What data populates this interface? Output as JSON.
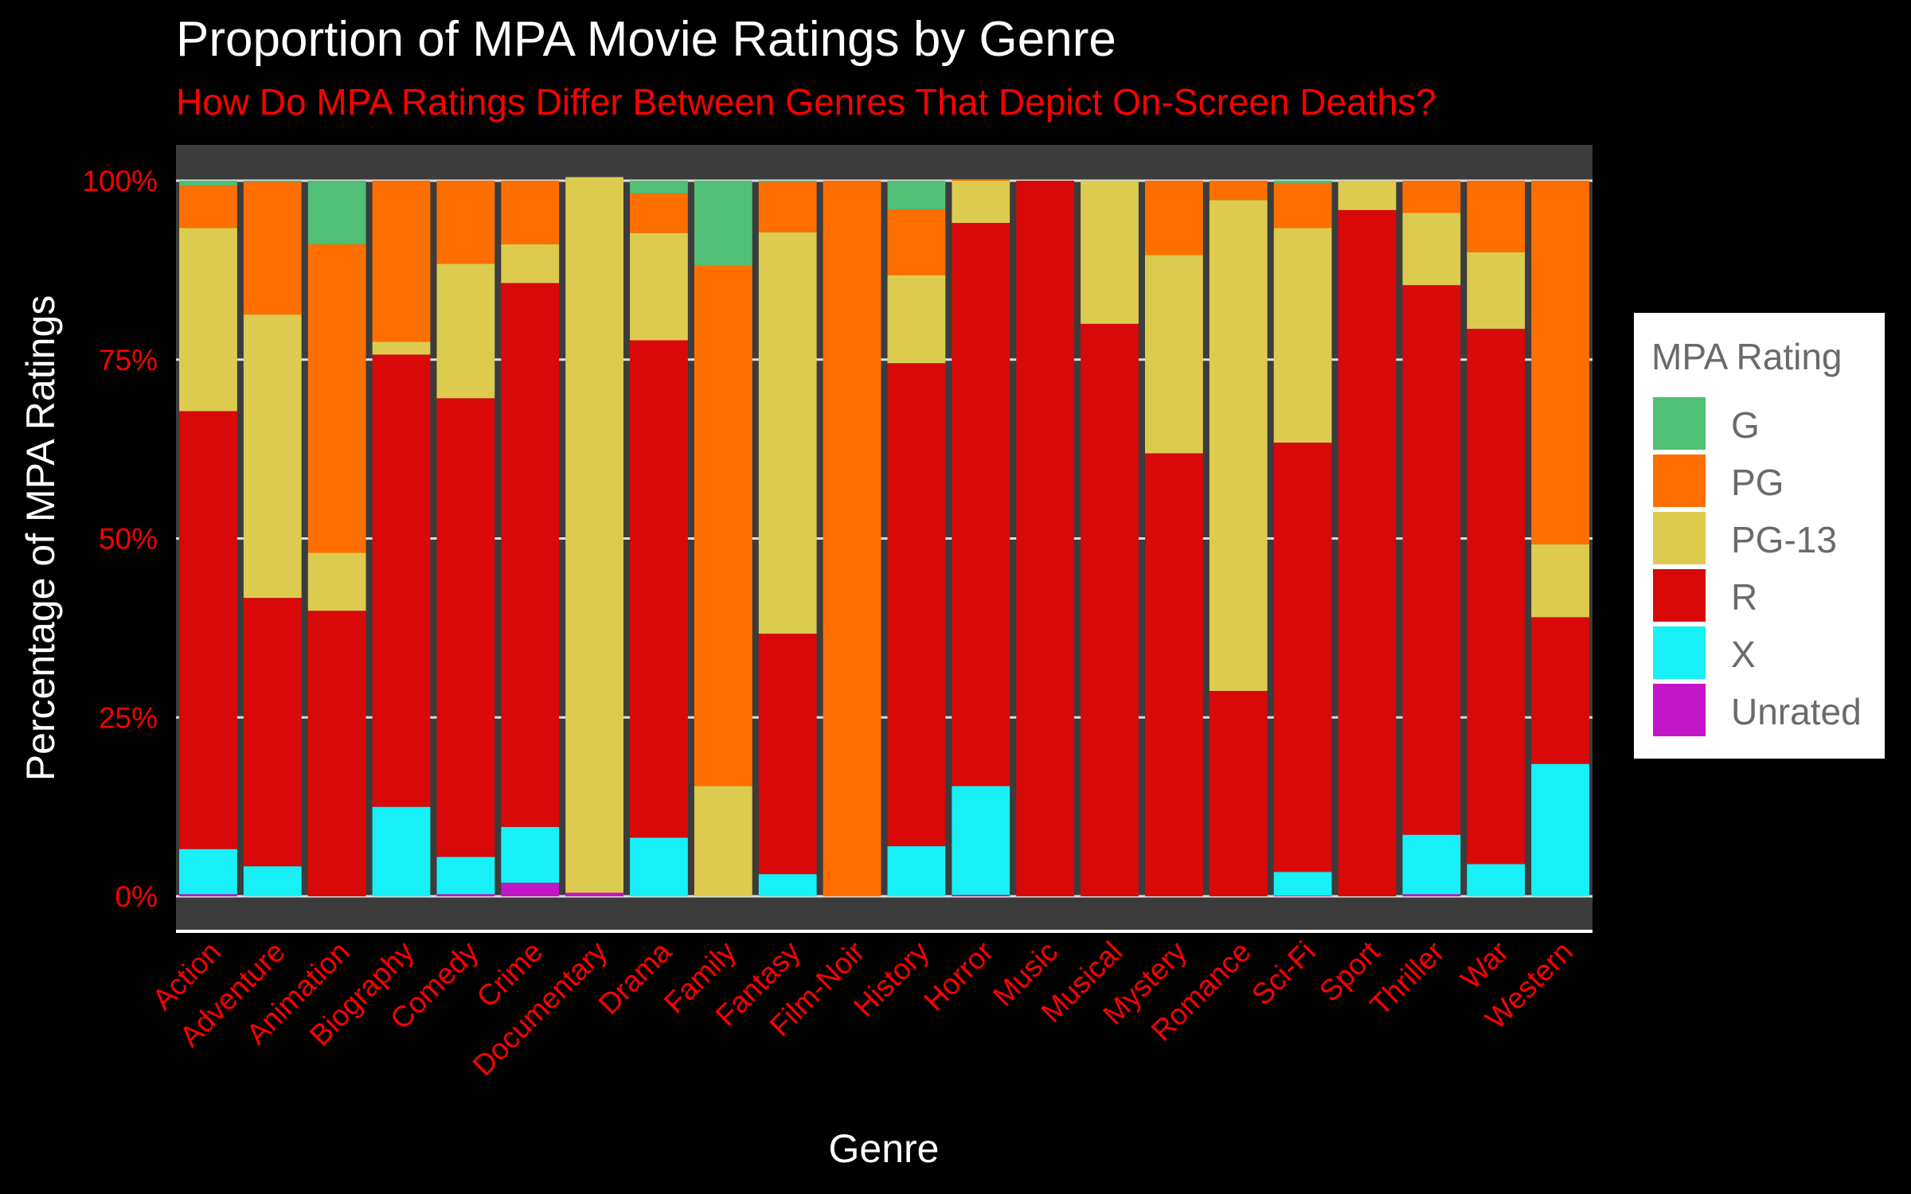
{
  "chart_data": {
    "type": "bar",
    "stacked": true,
    "normalized": true,
    "title": "Proportion of MPA Movie Ratings by Genre",
    "subtitle": "How Do MPA Ratings Differ Between Genres That Depict On-Screen Deaths?",
    "xlabel": "Genre",
    "ylabel": "Percentage of MPA Ratings",
    "ylim": [
      0,
      100
    ],
    "y_ticks": [
      "0%",
      "25%",
      "50%",
      "75%",
      "100%"
    ],
    "y_tick_values": [
      0,
      25,
      50,
      75,
      100
    ],
    "grid": true,
    "legend_title": "MPA Rating",
    "legend_position": "right",
    "categories": [
      "Action",
      "Adventure",
      "Animation",
      "Biography",
      "Comedy",
      "Crime",
      "Documentary",
      "Drama",
      "Family",
      "Fantasy",
      "Film-Noir",
      "History",
      "Horror",
      "Music",
      "Musical",
      "Mystery",
      "Romance",
      "Sci-Fi",
      "Sport",
      "Thriller",
      "War",
      "Western"
    ],
    "series": [
      {
        "name": "Unrated",
        "color": "#c316c7",
        "values": [
          0.3,
          0.0,
          0.0,
          0.0,
          0.3,
          1.9,
          0.5,
          0.0,
          0.0,
          0.0,
          0.0,
          0.0,
          0.2,
          0.0,
          0.0,
          0.0,
          0.0,
          0.1,
          0.0,
          0.3,
          0.0,
          0.0
        ]
      },
      {
        "name": "X",
        "color": "#18f0f8",
        "values": [
          6.3,
          4.2,
          0.0,
          12.5,
          5.2,
          7.8,
          0.0,
          8.2,
          0.0,
          3.1,
          0.0,
          7.0,
          15.2,
          0.0,
          0.0,
          0.0,
          0.0,
          3.3,
          0.0,
          8.3,
          4.5,
          18.5
        ]
      },
      {
        "name": "R",
        "color": "#d90909",
        "values": [
          61.2,
          37.5,
          39.9,
          63.2,
          64.1,
          76.0,
          0.0,
          69.5,
          0.0,
          33.6,
          0.0,
          67.5,
          78.7,
          100.0,
          80.0,
          61.9,
          28.7,
          60.0,
          95.9,
          76.8,
          74.8,
          20.5
        ]
      },
      {
        "name": "PG-13",
        "color": "#ddcb50",
        "values": [
          25.6,
          39.6,
          8.1,
          1.8,
          18.8,
          5.4,
          100.0,
          15.0,
          15.4,
          56.1,
          0.0,
          12.3,
          5.9,
          0.0,
          20.0,
          27.7,
          68.6,
          30.0,
          4.1,
          10.1,
          10.7,
          10.2
        ]
      },
      {
        "name": "PG",
        "color": "#fe6f00",
        "values": [
          5.9,
          18.5,
          43.1,
          22.5,
          11.6,
          8.9,
          0.0,
          5.5,
          72.7,
          7.0,
          100.0,
          9.2,
          0.2,
          0.0,
          0.0,
          10.4,
          2.7,
          6.2,
          0.0,
          4.5,
          10.0,
          50.8
        ]
      },
      {
        "name": "G",
        "color": "#51bf75",
        "values": [
          0.7,
          0.2,
          8.9,
          0.0,
          0.0,
          0.0,
          0.0,
          1.8,
          11.9,
          0.2,
          0.0,
          4.0,
          0.0,
          0.0,
          0.0,
          0.0,
          0.0,
          0.4,
          0.0,
          0.0,
          0.0,
          0.0
        ]
      }
    ]
  },
  "legend_order": [
    "G",
    "PG",
    "PG-13",
    "R",
    "X",
    "Unrated"
  ],
  "colors": {
    "background": "#000000",
    "panel": "#3c3c3c",
    "grid": "#dcdcdc",
    "title": "#ffffff",
    "accent_text": "#ff0000"
  }
}
